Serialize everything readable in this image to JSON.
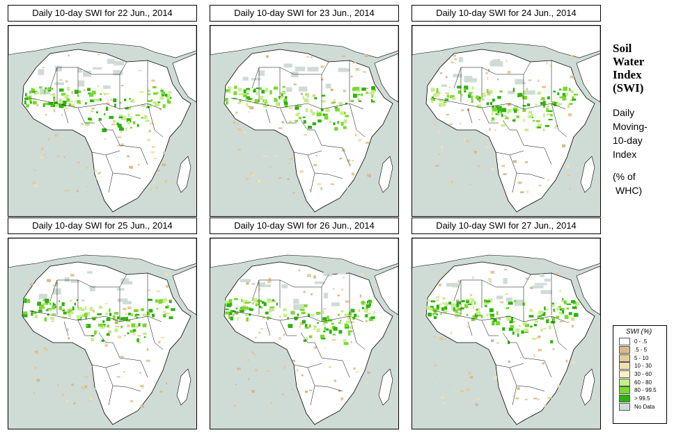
{
  "panels": [
    {
      "title": "Daily 10-day SWI for  22 Jun., 2014"
    },
    {
      "title": "Daily 10-day SWI for  23 Jun., 2014"
    },
    {
      "title": "Daily 10-day SWI for  24 Jun., 2014"
    },
    {
      "title": "Daily 10-day SWI for  25 Jun., 2014"
    },
    {
      "title": "Daily 10-day SWI for  26 Jun., 2014"
    },
    {
      "title": "Daily 10-day SWI for  27 Jun., 2014"
    }
  ],
  "side": {
    "title_1": "Soil",
    "title_2": "Water",
    "title_3": "Index",
    "title_4": "(SWI)",
    "sub_1": "Daily",
    "sub_2": "Moving-",
    "sub_3": "10-day",
    "sub_4": "Index",
    "unit_1": "(% of",
    "unit_2": "WHC)"
  },
  "legend": {
    "title": "SWI (%)",
    "items": [
      {
        "label": "0 - .5",
        "color": "#ffffff"
      },
      {
        "label": ".5 - 5",
        "color": "#d8b98a"
      },
      {
        "label": "5 - 10",
        "color": "#e6c99a"
      },
      {
        "label": "10 - 30",
        "color": "#f2dfb0"
      },
      {
        "label": "30 - 60",
        "color": "#f7f0c8"
      },
      {
        "label": "60 - 80",
        "color": "#c6ee8a"
      },
      {
        "label": "80 - 99.5",
        "color": "#7ad82e"
      },
      {
        "label": "> 99.5",
        "color": "#2cb30e"
      },
      {
        "label": "No Data",
        "color": "#cfdcd6"
      }
    ]
  }
}
